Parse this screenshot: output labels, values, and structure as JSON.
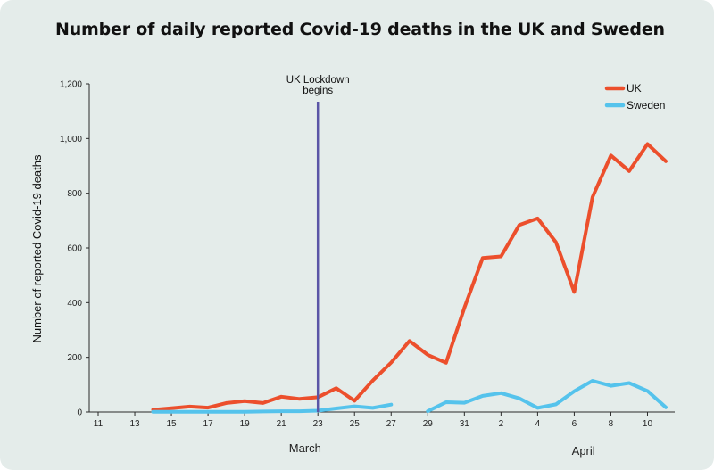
{
  "chart_data": {
    "type": "line",
    "title": "Number of daily reported Covid-19 deaths in the UK and Sweden",
    "xlabel": "",
    "ylabel": "Number of reported Covid-19 deaths",
    "ylim": [
      0,
      1200
    ],
    "yticks": [
      0,
      200,
      400,
      600,
      800,
      "1,000",
      "1,200"
    ],
    "ytick_values": [
      0,
      200,
      400,
      600,
      800,
      1000,
      1200
    ],
    "x_tick_labels": [
      "11",
      "13",
      "15",
      "17",
      "19",
      "21",
      "23",
      "25",
      "27",
      "29",
      "31",
      "2",
      "4",
      "6",
      "8",
      "10"
    ],
    "x_tick_positions": [
      0,
      2,
      4,
      6,
      8,
      10,
      12,
      14,
      16,
      18,
      20,
      22,
      24,
      26,
      28,
      30
    ],
    "x_range": [
      -0.5,
      31.5
    ],
    "months": [
      {
        "label": "March",
        "center": 11.3
      },
      {
        "label": "April",
        "center": 26.5
      }
    ],
    "annotation": {
      "lines": [
        "UK Lockdown",
        "begins"
      ],
      "x": 12
    },
    "legend": {
      "position": "top-right"
    },
    "series": [
      {
        "name": "UK",
        "color": "#ec4f2c",
        "points": [
          [
            3,
            8
          ],
          [
            4,
            14
          ],
          [
            5,
            20
          ],
          [
            6,
            16
          ],
          [
            7,
            33
          ],
          [
            8,
            40
          ],
          [
            9,
            33
          ],
          [
            10,
            56
          ],
          [
            11,
            48
          ],
          [
            12,
            54
          ],
          [
            13,
            87
          ],
          [
            14,
            41
          ],
          [
            15,
            115
          ],
          [
            16,
            181
          ],
          [
            17,
            260
          ],
          [
            18,
            209
          ],
          [
            19,
            180
          ],
          [
            20,
            381
          ],
          [
            21,
            563
          ],
          [
            22,
            569
          ],
          [
            23,
            684
          ],
          [
            24,
            708
          ],
          [
            25,
            621
          ],
          [
            26,
            439
          ],
          [
            27,
            786
          ],
          [
            28,
            938
          ],
          [
            29,
            881
          ],
          [
            30,
            980
          ],
          [
            31,
            917
          ]
        ]
      },
      {
        "name": "Sweden",
        "color": "#55c3ec",
        "points": [
          [
            3,
            1
          ],
          [
            4,
            1
          ],
          [
            5,
            1
          ],
          [
            6,
            1
          ],
          [
            7,
            1
          ],
          [
            8,
            1
          ],
          [
            9,
            2
          ],
          [
            10,
            3
          ],
          [
            11,
            3
          ],
          [
            12,
            5
          ],
          [
            13,
            13
          ],
          [
            14,
            21
          ],
          [
            15,
            15
          ],
          [
            16,
            27
          ],
          [
            17,
            null
          ],
          [
            18,
            3
          ],
          [
            19,
            36
          ],
          [
            20,
            34
          ],
          [
            21,
            59
          ],
          [
            22,
            69
          ],
          [
            23,
            50
          ],
          [
            24,
            15
          ],
          [
            25,
            28
          ],
          [
            26,
            76
          ],
          [
            27,
            114
          ],
          [
            28,
            96
          ],
          [
            29,
            106
          ],
          [
            30,
            77
          ],
          [
            31,
            17
          ]
        ]
      }
    ]
  }
}
